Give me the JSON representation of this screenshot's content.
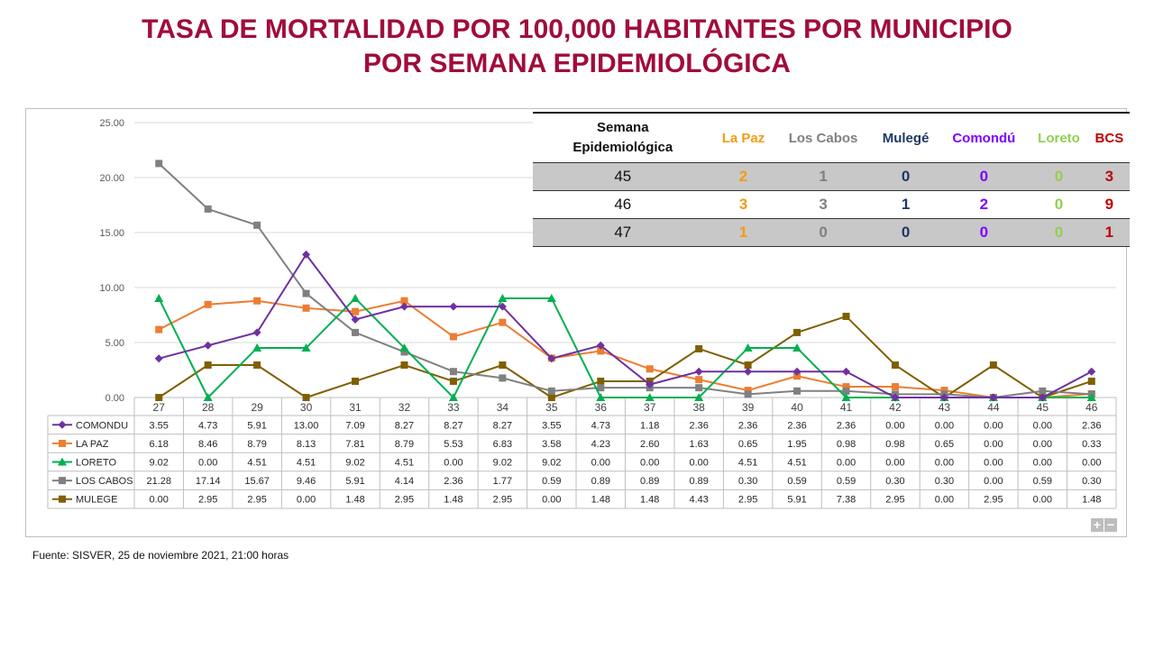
{
  "title": {
    "line1": "TASA DE MORTALIDAD POR 100,000 HABITANTES POR MUNICIPIO",
    "line2": "POR SEMANA EPIDEMIOLÓGICA"
  },
  "colors": {
    "title": "#a00d3a",
    "comondu": "#7030a0",
    "la_paz": "#ed7d31",
    "loreto": "#00b050",
    "los_cabos": "#808080",
    "mulege": "#7f6000"
  },
  "summary_table": {
    "headers": [
      {
        "text": "Semana Epidemiológica",
        "color": "#111111"
      },
      {
        "text": "La Paz",
        "color": "#f39c12"
      },
      {
        "text": "Los Cabos",
        "color": "#808080"
      },
      {
        "text": "Mulegé",
        "color": "#1f3864"
      },
      {
        "text": "Comondú",
        "color": "#7f00ff"
      },
      {
        "text": "Loreto",
        "color": "#92d050"
      },
      {
        "text": "BCS",
        "color": "#c00000"
      }
    ],
    "rows": [
      {
        "week": "45",
        "values": [
          "2",
          "1",
          "0",
          "0",
          "0",
          "3"
        ]
      },
      {
        "week": "46",
        "values": [
          "3",
          "3",
          "1",
          "2",
          "0",
          "9"
        ]
      },
      {
        "week": "47",
        "values": [
          "1",
          "0",
          "0",
          "0",
          "0",
          "1"
        ]
      }
    ]
  },
  "chart_data": {
    "type": "line",
    "categories": [
      "27",
      "28",
      "29",
      "30",
      "31",
      "32",
      "33",
      "34",
      "35",
      "36",
      "37",
      "38",
      "39",
      "40",
      "41",
      "42",
      "43",
      "44",
      "45",
      "46"
    ],
    "ylim": [
      0,
      25
    ],
    "yticks": [
      "0.00",
      "5.00",
      "10.00",
      "15.00",
      "20.00",
      "25.00"
    ],
    "grid": true,
    "legend": "data-table",
    "series": [
      {
        "name": "COMONDU",
        "color": "#7030a0",
        "marker": "diamond",
        "values": [
          3.55,
          4.73,
          5.91,
          13.0,
          7.09,
          8.27,
          8.27,
          8.27,
          3.55,
          4.73,
          1.18,
          2.36,
          2.36,
          2.36,
          2.36,
          0.0,
          0.0,
          0.0,
          0.0,
          2.36
        ],
        "labels": [
          "3.55",
          "4.73",
          "5.91",
          "13.00",
          "7.09",
          "8.27",
          "8.27",
          "8.27",
          "3.55",
          "4.73",
          "1.18",
          "2.36",
          "2.36",
          "2.36",
          "2.36",
          "0.00",
          "0.00",
          "0.00",
          "0.00",
          "2.36"
        ]
      },
      {
        "name": "LA PAZ",
        "color": "#ed7d31",
        "marker": "square",
        "values": [
          6.18,
          8.46,
          8.79,
          8.13,
          7.81,
          8.79,
          5.53,
          6.83,
          3.58,
          4.23,
          2.6,
          1.63,
          0.65,
          1.95,
          0.98,
          0.98,
          0.65,
          0.0,
          0.0,
          0.33
        ],
        "labels": [
          "6.18",
          "8.46",
          "8.79",
          "8.13",
          "7.81",
          "8.79",
          "5.53",
          "6.83",
          "3.58",
          "4.23",
          "2.60",
          "1.63",
          "0.65",
          "1.95",
          "0.98",
          "0.98",
          "0.65",
          "0.00",
          "0.00",
          "0.33"
        ]
      },
      {
        "name": "LORETO",
        "color": "#00b050",
        "marker": "triangle",
        "values": [
          9.02,
          0.0,
          4.51,
          4.51,
          9.02,
          4.51,
          0.0,
          9.02,
          9.02,
          0.0,
          0.0,
          0.0,
          4.51,
          4.51,
          0.0,
          0.0,
          0.0,
          0.0,
          0.0,
          0.0
        ],
        "labels": [
          "9.02",
          "0.00",
          "4.51",
          "4.51",
          "9.02",
          "4.51",
          "0.00",
          "9.02",
          "9.02",
          "0.00",
          "0.00",
          "0.00",
          "4.51",
          "4.51",
          "0.00",
          "0.00",
          "0.00",
          "0.00",
          "0.00",
          "0.00"
        ]
      },
      {
        "name": "LOS CABOS",
        "color": "#808080",
        "marker": "square",
        "values": [
          21.28,
          17.14,
          15.67,
          9.46,
          5.91,
          4.14,
          2.36,
          1.77,
          0.59,
          0.89,
          0.89,
          0.89,
          0.3,
          0.59,
          0.59,
          0.3,
          0.3,
          0.0,
          0.59,
          0.3
        ],
        "labels": [
          "21.28",
          "17.14",
          "15.67",
          "9.46",
          "5.91",
          "4.14",
          "2.36",
          "1.77",
          "0.59",
          "0.89",
          "0.89",
          "0.89",
          "0.30",
          "0.59",
          "0.59",
          "0.30",
          "0.30",
          "0.00",
          "0.59",
          "0.30"
        ]
      },
      {
        "name": "MULEGE",
        "color": "#7f6000",
        "marker": "square",
        "values": [
          0.0,
          2.95,
          2.95,
          0.0,
          1.48,
          2.95,
          1.48,
          2.95,
          0.0,
          1.48,
          1.48,
          4.43,
          2.95,
          5.91,
          7.38,
          2.95,
          0.0,
          2.95,
          0.0,
          1.48
        ],
        "labels": [
          "0.00",
          "2.95",
          "2.95",
          "0.00",
          "1.48",
          "2.95",
          "1.48",
          "2.95",
          "0.00",
          "1.48",
          "1.48",
          "4.43",
          "2.95",
          "5.91",
          "7.38",
          "2.95",
          "0.00",
          "2.95",
          "0.00",
          "1.48"
        ]
      }
    ]
  },
  "source": "Fuente: SISVER,  25 de noviembre  2021, 21:00 horas",
  "zoom": {
    "plus": "+",
    "minus": "−"
  }
}
